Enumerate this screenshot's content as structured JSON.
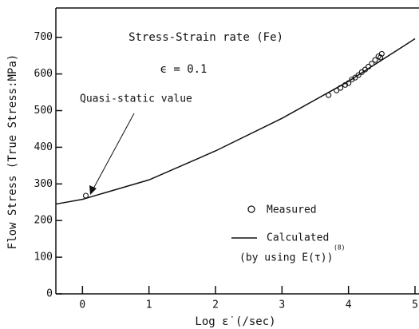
{
  "chart_data": {
    "type": "scatter",
    "title": "Stress-Strain rate (Fe)",
    "subtitle": "ϵ = 0.1",
    "x_label": "Log ε̇ (/sec)",
    "y_label": "Flow Stress (True Stress:MPa)",
    "annotation": "Quasi-static value",
    "xlim": [
      -0.4,
      5
    ],
    "xticks": [
      0,
      1,
      2,
      3,
      4,
      5
    ],
    "ylim": [
      0,
      780
    ],
    "yticks": [
      0,
      100,
      200,
      300,
      400,
      500,
      600,
      700
    ],
    "grid": false,
    "series": [
      {
        "name": "Measured",
        "mark": "circle",
        "color": "#111111",
        "x": [
          0.05,
          3.7,
          3.82,
          3.88,
          3.95,
          4.0,
          4.05,
          4.1,
          4.15,
          4.2,
          4.25,
          4.3,
          4.35,
          4.4,
          4.45,
          4.48,
          4.5
        ],
        "values": [
          268,
          542,
          555,
          562,
          570,
          575,
          585,
          590,
          597,
          605,
          612,
          620,
          628,
          638,
          648,
          645,
          655
        ]
      },
      {
        "name": "Calculated",
        "name_note": "(by using E(τ))",
        "name_sup": "(8)",
        "mark": "line",
        "color": "#111111",
        "x": [
          -0.4,
          0,
          1,
          2,
          3,
          4,
          5
        ],
        "values": [
          245,
          258,
          311,
          390,
          479,
          580,
          696
        ]
      }
    ]
  }
}
